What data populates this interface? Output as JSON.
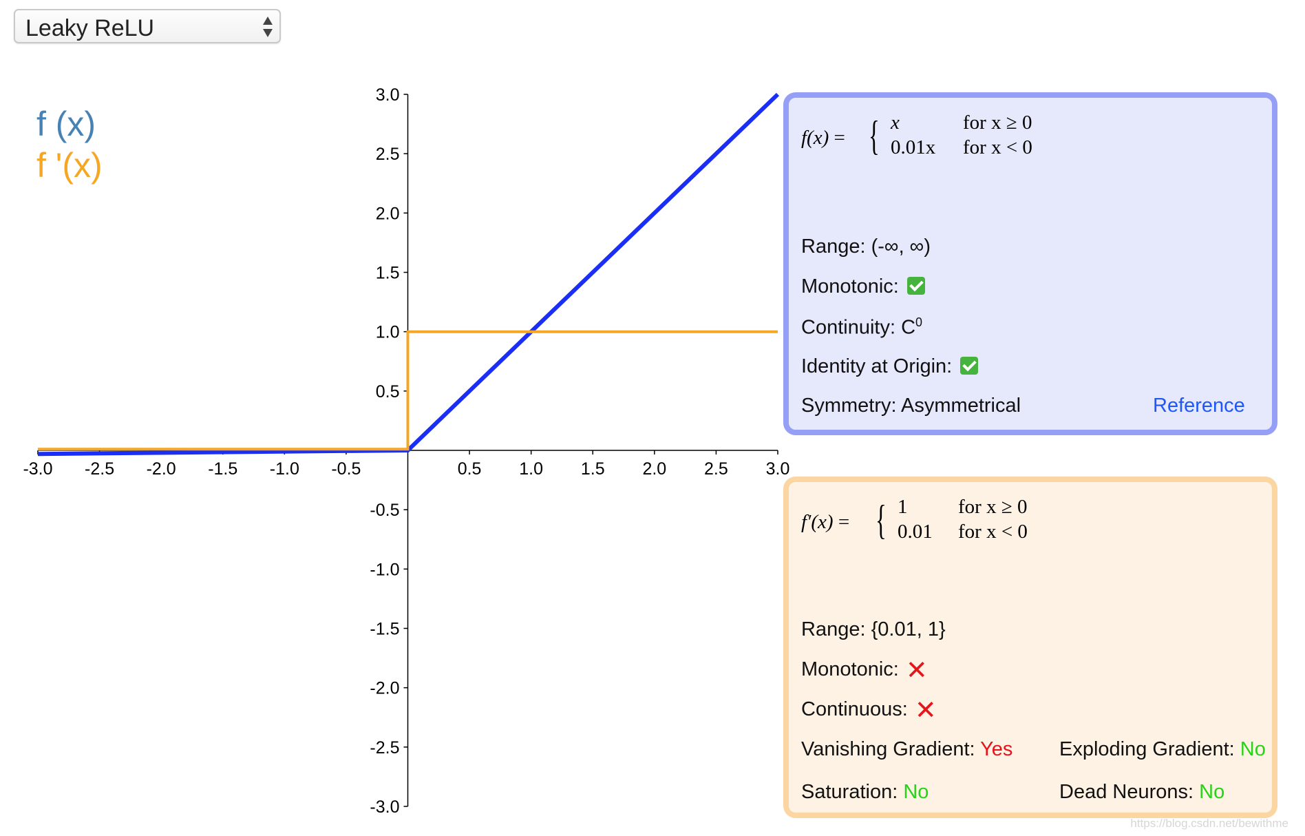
{
  "selector": {
    "value": "Leaky ReLU",
    "arrows_icon": "updown-arrows-icon"
  },
  "legend": {
    "fx": "f (x)",
    "dfx": "f '(x)",
    "fx_color": "#4682b4",
    "dfx_color": "#f5a623"
  },
  "chart_data": {
    "type": "line",
    "xlim": [
      -3.0,
      3.0
    ],
    "ylim": [
      -3.0,
      3.0
    ],
    "x_ticks": [
      "-3.0",
      "-2.5",
      "-2.0",
      "-1.5",
      "-1.0",
      "-0.5",
      "0.5",
      "1.0",
      "1.5",
      "2.0",
      "2.5",
      "3.0"
    ],
    "x_tick_values": [
      -3.0,
      -2.5,
      -2.0,
      -1.5,
      -1.0,
      -0.5,
      0.5,
      1.0,
      1.5,
      2.0,
      2.5,
      3.0
    ],
    "y_ticks": [
      "3.0",
      "2.5",
      "2.0",
      "1.5",
      "1.0",
      "0.5",
      "-0.5",
      "-1.0",
      "-1.5",
      "-2.0",
      "-2.5",
      "-3.0"
    ],
    "y_tick_values": [
      3.0,
      2.5,
      2.0,
      1.5,
      1.0,
      0.5,
      -0.5,
      -1.0,
      -1.5,
      -2.0,
      -2.5,
      -3.0
    ],
    "grid": false,
    "series": [
      {
        "name": "f (x)",
        "color": "#1a2ef5",
        "x": [
          -3.0,
          0.0,
          3.0
        ],
        "y": [
          -0.03,
          0.0,
          3.0
        ]
      },
      {
        "name": "f '(x)",
        "color": "#f5a623",
        "x": [
          -3.0,
          0.0,
          0.0,
          3.0
        ],
        "y": [
          0.01,
          0.01,
          1.0,
          1.0
        ]
      }
    ]
  },
  "function_panel": {
    "lhs": "f(x)",
    "cases": [
      {
        "expr": "x",
        "cond": "for x ≥ 0"
      },
      {
        "expr": "0.01x",
        "cond": "for x < 0"
      }
    ],
    "range_label": "Range:",
    "range_value": "(-∞, ∞)",
    "monotonic_label": "Monotonic:",
    "continuity_label": "Continuity:",
    "continuity_value": "C",
    "continuity_sup": "0",
    "identity_label": "Identity at Origin:",
    "symmetry_label": "Symmetry:",
    "symmetry_value": "Asymmetrical",
    "reference_link": "Reference",
    "background": "#e6e8fc",
    "border": "#959ff5"
  },
  "derivative_panel": {
    "lhs": "f′(x)",
    "cases": [
      {
        "expr": "1",
        "cond": "for x ≥ 0"
      },
      {
        "expr": "0.01",
        "cond": "for x < 0"
      }
    ],
    "range_label": "Range:",
    "range_value": "{0.01, 1}",
    "monotonic_label": "Monotonic:",
    "continuous_label": "Continuous:",
    "vanishing_label": "Vanishing Gradient:",
    "vanishing_value": "Yes",
    "exploding_label": "Exploding Gradient:",
    "exploding_value": "No",
    "saturation_label": "Saturation:",
    "saturation_value": "No",
    "dead_label": "Dead Neurons:",
    "dead_value": "No",
    "background": "#fdf2e4",
    "border": "#fbd6a2"
  },
  "watermark": "https://blog.csdn.net/bewithme"
}
